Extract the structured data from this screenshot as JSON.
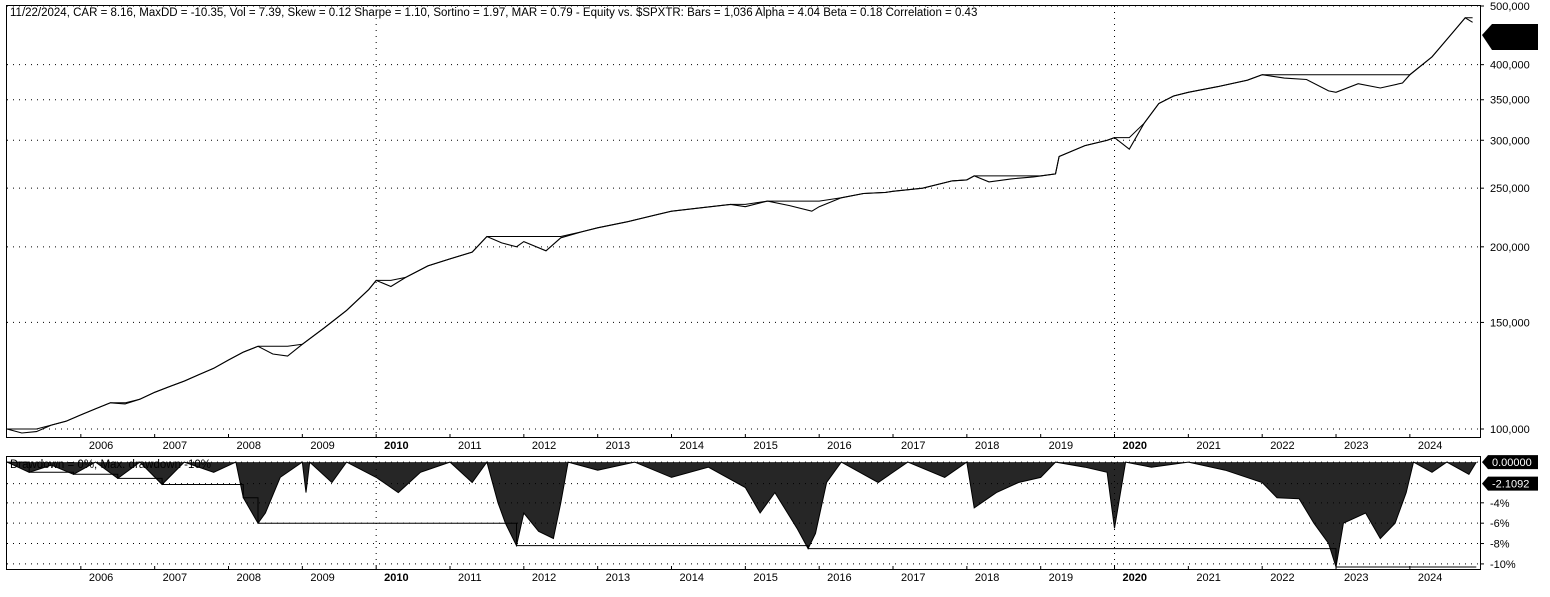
{
  "header": {
    "stats": "11/22/2024, CAR = 8.16, MaxDD = -10.35, Vol = 7.39, Skew = 0.12 Sharpe = 1.10, Sortino = 1.97, MAR = 0.79 - Equity vs. $SPXTR:  Bars = 1,036 Alpha = 4.04 Beta = 0.18 Correlation = 0.43"
  },
  "drawdown_legend": "Drawdown = 0%, Max. drawdown -10%",
  "equity_last_label": "",
  "chart_data": [
    {
      "type": "line",
      "title": "11/22/2024, CAR = 8.16, MaxDD = -10.35, Vol = 7.39, Skew = 0.12 Sharpe = 1.10, Sortino = 1.97, MAR = 0.79 - Equity vs. $SPXTR:  Bars = 1,036 Alpha = 4.04 Beta = 0.18 Correlation = 0.43",
      "y_scale": "log",
      "ylim": [
        97000,
        500000
      ],
      "xlim": [
        2005.0,
        2024.95
      ],
      "y_ticks": [
        {
          "value": 100000,
          "label": "100,000"
        },
        {
          "value": 150000,
          "label": "150,000"
        },
        {
          "value": 200000,
          "label": "200,000"
        },
        {
          "value": 250000,
          "label": "250,000"
        },
        {
          "value": 300000,
          "label": "300,000"
        },
        {
          "value": 350000,
          "label": "350,000"
        },
        {
          "value": 400000,
          "label": "400,000"
        },
        {
          "value": 500000,
          "label": "500,000"
        }
      ],
      "x_ticks": [
        "2006",
        "2007",
        "2008",
        "2009",
        "2010",
        "2011",
        "2012",
        "2013",
        "2014",
        "2015",
        "2016",
        "2017",
        "2018",
        "2019",
        "2020",
        "2021",
        "2022",
        "2023",
        "2024"
      ],
      "grid": true,
      "series": [
        {
          "points": [
            [
              2005.0,
              100000
            ],
            [
              2005.2,
              98500
            ],
            [
              2005.4,
              99000
            ],
            [
              2005.6,
              101500
            ],
            [
              2005.8,
              103000
            ],
            [
              2006.0,
              105500
            ],
            [
              2006.2,
              108000
            ],
            [
              2006.4,
              110500
            ],
            [
              2006.6,
              110000
            ],
            [
              2006.8,
              112000
            ],
            [
              2007.0,
              115000
            ],
            [
              2007.2,
              117500
            ],
            [
              2007.4,
              120000
            ],
            [
              2007.6,
              123000
            ],
            [
              2007.8,
              126000
            ],
            [
              2008.0,
              130000
            ],
            [
              2008.2,
              134000
            ],
            [
              2008.4,
              137000
            ],
            [
              2008.6,
              133000
            ],
            [
              2008.8,
              132000
            ],
            [
              2009.0,
              138000
            ],
            [
              2009.3,
              147000
            ],
            [
              2009.6,
              157000
            ],
            [
              2009.9,
              170000
            ],
            [
              2010.0,
              176000
            ],
            [
              2010.2,
              172000
            ],
            [
              2010.4,
              178000
            ],
            [
              2010.7,
              186000
            ],
            [
              2011.0,
              191000
            ],
            [
              2011.3,
              196000
            ],
            [
              2011.5,
              208000
            ],
            [
              2011.7,
              203000
            ],
            [
              2011.9,
              200000
            ],
            [
              2012.0,
              204000
            ],
            [
              2012.3,
              197000
            ],
            [
              2012.5,
              207000
            ],
            [
              2012.8,
              212000
            ],
            [
              2013.0,
              215000
            ],
            [
              2013.4,
              220000
            ],
            [
              2013.8,
              226000
            ],
            [
              2014.0,
              229000
            ],
            [
              2014.4,
              232000
            ],
            [
              2014.8,
              235000
            ],
            [
              2015.0,
              233000
            ],
            [
              2015.3,
              238000
            ],
            [
              2015.6,
              234000
            ],
            [
              2015.9,
              229000
            ],
            [
              2016.0,
              233000
            ],
            [
              2016.3,
              241000
            ],
            [
              2016.6,
              245000
            ],
            [
              2016.9,
              246000
            ],
            [
              2017.0,
              247000
            ],
            [
              2017.4,
              250000
            ],
            [
              2017.8,
              257000
            ],
            [
              2018.0,
              258000
            ],
            [
              2018.1,
              262000
            ],
            [
              2018.3,
              256000
            ],
            [
              2018.6,
              259000
            ],
            [
              2018.9,
              261000
            ],
            [
              2019.0,
              262000
            ],
            [
              2019.2,
              264000
            ],
            [
              2019.25,
              282000
            ],
            [
              2019.6,
              294000
            ],
            [
              2019.9,
              300000
            ],
            [
              2020.0,
              303000
            ],
            [
              2020.2,
              290000
            ],
            [
              2020.4,
              320000
            ],
            [
              2020.6,
              345000
            ],
            [
              2020.8,
              355000
            ],
            [
              2021.0,
              360000
            ],
            [
              2021.4,
              368000
            ],
            [
              2021.8,
              377000
            ],
            [
              2022.0,
              385000
            ],
            [
              2022.3,
              380000
            ],
            [
              2022.6,
              378000
            ],
            [
              2022.9,
              362000
            ],
            [
              2023.0,
              360000
            ],
            [
              2023.3,
              372000
            ],
            [
              2023.6,
              366000
            ],
            [
              2023.9,
              373000
            ],
            [
              2024.0,
              385000
            ],
            [
              2024.3,
              412000
            ],
            [
              2024.6,
              455000
            ],
            [
              2024.75,
              478000
            ],
            [
              2024.85,
              470000
            ]
          ]
        }
      ]
    },
    {
      "type": "area",
      "title": "Drawdown = 0%, Max. drawdown -10%",
      "ylim": [
        -10.5,
        0.5
      ],
      "xlim": [
        2005.0,
        2024.95
      ],
      "y_ticks": [
        {
          "value": -4,
          "label": "-4%"
        },
        {
          "value": -6,
          "label": "-6%"
        },
        {
          "value": -8,
          "label": "-8%"
        },
        {
          "value": -10,
          "label": "-10%"
        }
      ],
      "x_ticks": [
        "2006",
        "2007",
        "2008",
        "2009",
        "2010",
        "2011",
        "2012",
        "2013",
        "2014",
        "2015",
        "2016",
        "2017",
        "2018",
        "2019",
        "2020",
        "2021",
        "2022",
        "2023",
        "2024"
      ],
      "value_labels": [
        {
          "value": 0,
          "label": "0.00000"
        },
        {
          "value": -2.1092,
          "label": "-2.1092"
        }
      ],
      "grid": true,
      "series": [
        {
          "points": [
            [
              2005.0,
              0
            ],
            [
              2005.3,
              -1.0
            ],
            [
              2005.6,
              -0.3
            ],
            [
              2005.9,
              -1.2
            ],
            [
              2006.2,
              0
            ],
            [
              2006.5,
              -1.6
            ],
            [
              2006.8,
              0
            ],
            [
              2007.1,
              -2.2
            ],
            [
              2007.4,
              0
            ],
            [
              2007.8,
              -1.0
            ],
            [
              2008.1,
              0
            ],
            [
              2008.2,
              -3.5
            ],
            [
              2008.4,
              -6.0
            ],
            [
              2008.5,
              -5.0
            ],
            [
              2008.7,
              -1.5
            ],
            [
              2009.0,
              0
            ],
            [
              2009.05,
              -3.0
            ],
            [
              2009.1,
              0
            ],
            [
              2009.4,
              -2.0
            ],
            [
              2009.6,
              0
            ],
            [
              2010.0,
              -1.5
            ],
            [
              2010.3,
              -3.0
            ],
            [
              2010.6,
              -1.0
            ],
            [
              2011.0,
              0
            ],
            [
              2011.3,
              -2.0
            ],
            [
              2011.5,
              0
            ],
            [
              2011.65,
              -4.0
            ],
            [
              2011.75,
              -6.0
            ],
            [
              2011.9,
              -8.2
            ],
            [
              2012.0,
              -5.0
            ],
            [
              2012.2,
              -6.8
            ],
            [
              2012.4,
              -7.5
            ],
            [
              2012.5,
              -4.0
            ],
            [
              2012.6,
              0
            ],
            [
              2013.0,
              -0.8
            ],
            [
              2013.5,
              0
            ],
            [
              2014.0,
              -1.5
            ],
            [
              2014.5,
              -0.5
            ],
            [
              2015.0,
              -2.5
            ],
            [
              2015.2,
              -5.0
            ],
            [
              2015.4,
              -3.0
            ],
            [
              2015.7,
              -6.5
            ],
            [
              2015.85,
              -8.5
            ],
            [
              2015.95,
              -7.0
            ],
            [
              2016.1,
              -2.0
            ],
            [
              2016.3,
              0
            ],
            [
              2016.8,
              -2.0
            ],
            [
              2017.2,
              0
            ],
            [
              2017.7,
              -1.5
            ],
            [
              2018.0,
              0
            ],
            [
              2018.1,
              -4.5
            ],
            [
              2018.4,
              -3.0
            ],
            [
              2018.7,
              -2.0
            ],
            [
              2019.0,
              -1.5
            ],
            [
              2019.2,
              0
            ],
            [
              2019.6,
              -0.5
            ],
            [
              2019.9,
              -1.0
            ],
            [
              2020.0,
              -6.5
            ],
            [
              2020.15,
              0
            ],
            [
              2020.5,
              -0.5
            ],
            [
              2021.0,
              0
            ],
            [
              2021.5,
              -0.8
            ],
            [
              2022.0,
              -2.0
            ],
            [
              2022.2,
              -3.5
            ],
            [
              2022.5,
              -3.6
            ],
            [
              2022.7,
              -6.0
            ],
            [
              2022.9,
              -8.0
            ],
            [
              2023.0,
              -10.3
            ],
            [
              2023.1,
              -6.0
            ],
            [
              2023.4,
              -5.0
            ],
            [
              2023.6,
              -7.5
            ],
            [
              2023.8,
              -6.0
            ],
            [
              2023.95,
              -3.0
            ],
            [
              2024.05,
              0
            ],
            [
              2024.3,
              -1.0
            ],
            [
              2024.5,
              0
            ],
            [
              2024.8,
              -1.2
            ],
            [
              2024.9,
              0
            ]
          ]
        }
      ]
    }
  ]
}
